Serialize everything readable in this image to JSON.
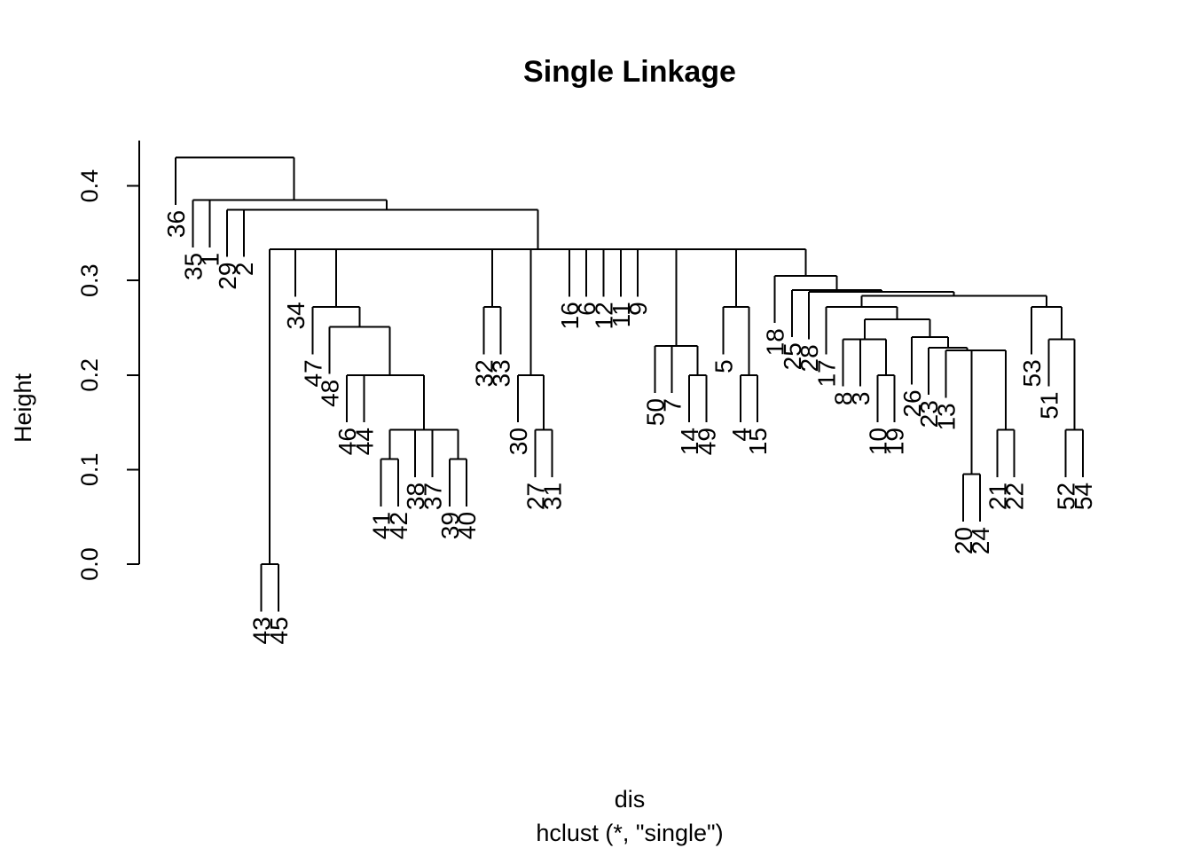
{
  "chart_data": {
    "type": "dendrogram",
    "title": "Single Linkage",
    "xlabel": "dis",
    "sublabel": "hclust (*, \"single\")",
    "ylabel": "Height",
    "ylim": [
      0,
      0.45
    ],
    "yticks": [
      0.0,
      0.1,
      0.2,
      0.3,
      0.4
    ],
    "ytick_labels": [
      "0.0",
      "0.1",
      "0.2",
      "0.3",
      "0.4"
    ],
    "leaf_order": [
      "36",
      "35",
      "1",
      "29",
      "2",
      "43",
      "45",
      "34",
      "47",
      "48",
      "46",
      "44",
      "41",
      "42",
      "38",
      "37",
      "39",
      "40",
      "32",
      "33",
      "30",
      "27",
      "31",
      "16",
      "6",
      "12",
      "11",
      "9",
      "50",
      "7",
      "14",
      "49",
      "5",
      "4",
      "15",
      "18",
      "25",
      "28",
      "17",
      "8",
      "3",
      "10",
      "19",
      "26",
      "23",
      "13",
      "20",
      "24",
      "21",
      "22",
      "53",
      "51",
      "52",
      "54"
    ],
    "tree": {
      "h": 0.43,
      "c": [
        "36",
        {
          "h": 0.385,
          "c": [
            {
              "h": 0.385,
              "c": [
                "35",
                "1"
              ]
            },
            {
              "h": 0.375,
              "c": [
                {
                  "h": 0.375,
                  "c": [
                    "29",
                    "2"
                  ]
                },
                {
                  "h": 0.333,
                  "c": [
                    {
                      "h": 0.0,
                      "c": [
                        "43",
                        "45"
                      ]
                    },
                    "34",
                    {
                      "h": 0.272,
                      "c": [
                        "47",
                        {
                          "h": 0.251,
                          "c": [
                            "48",
                            {
                              "h": 0.2,
                              "c": [
                                {
                                  "h": 0.2,
                                  "c": [
                                    "46",
                                    "44"
                                  ]
                                },
                                {
                                  "h": 0.142,
                                  "c": [
                                    {
                                      "h": 0.111,
                                      "c": [
                                        "41",
                                        "42"
                                      ]
                                    },
                                    "38",
                                    "37",
                                    {
                                      "h": 0.111,
                                      "c": [
                                        "39",
                                        "40"
                                      ]
                                    }
                                  ]
                                }
                              ]
                            }
                          ]
                        }
                      ]
                    },
                    {
                      "h": 0.272,
                      "c": [
                        "32",
                        "33"
                      ]
                    },
                    {
                      "h": 0.2,
                      "c": [
                        "30",
                        {
                          "h": 0.142,
                          "c": [
                            "27",
                            "31"
                          ]
                        }
                      ]
                    },
                    "16",
                    "6",
                    "12",
                    "11",
                    "9",
                    {
                      "h": 0.231,
                      "c": [
                        "50",
                        "7",
                        {
                          "h": 0.2,
                          "c": [
                            "14",
                            "49"
                          ]
                        }
                      ]
                    },
                    {
                      "h": 0.272,
                      "c": [
                        "5",
                        {
                          "h": 0.2,
                          "c": [
                            "4",
                            "15"
                          ]
                        }
                      ]
                    },
                    {
                      "h": 0.305,
                      "c": [
                        "18",
                        {
                          "h": 0.29,
                          "c": [
                            "25",
                            {
                              "h": 0.288,
                              "c": [
                                "28",
                                {
                                  "h": 0.284,
                                  "c": [
                                    {
                                      "h": 0.272,
                                      "c": [
                                        "17",
                                        {
                                          "h": 0.259,
                                          "c": [
                                            {
                                              "h": 0.238,
                                              "c": [
                                                "8",
                                                "3",
                                                {
                                                  "h": 0.2,
                                                  "c": [
                                                    "10",
                                                    "19"
                                                  ]
                                                }
                                              ]
                                            },
                                            {
                                              "h": 0.24,
                                              "c": [
                                                "26",
                                                {
                                                  "h": 0.229,
                                                  "c": [
                                                    "23",
                                                    {
                                                      "h": 0.226,
                                                      "c": [
                                                        "13",
                                                        {
                                                          "h": 0.226,
                                                          "c": [
                                                            {
                                                              "h": 0.095,
                                                              "c": [
                                                                "20",
                                                                "24"
                                                              ]
                                                            },
                                                            {
                                                              "h": 0.142,
                                                              "c": [
                                                                "21",
                                                                "22"
                                                              ]
                                                            }
                                                          ]
                                                        }
                                                      ]
                                                    }
                                                  ]
                                                }
                                              ]
                                            }
                                          ]
                                        }
                                      ]
                                    },
                                    {
                                      "h": 0.272,
                                      "c": [
                                        "53",
                                        {
                                          "h": 0.238,
                                          "c": [
                                            "51",
                                            {
                                              "h": 0.142,
                                              "c": [
                                                "52",
                                                "54"
                                              ]
                                            }
                                          ]
                                        }
                                      ]
                                    }
                                  ]
                                }
                              ]
                            }
                          ]
                        }
                      ]
                    }
                  ]
                }
              ]
            }
          ]
        }
      ]
    }
  }
}
